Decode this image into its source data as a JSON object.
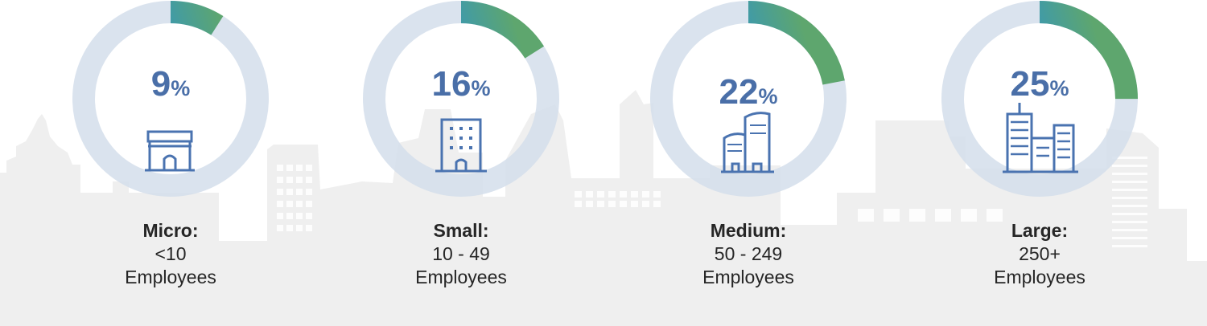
{
  "chart_data": {
    "type": "pie",
    "subtype": "donut",
    "unit_symbol": "%",
    "max": 100,
    "colors": {
      "track": "#d3deeb",
      "fill_start": "#3566a8",
      "fill_mid": "#2a92d2",
      "fill_end": "#5ea66e",
      "number": "#4a6fa8",
      "icon": "#4a73b0"
    },
    "items": [
      {
        "value": 9,
        "value_label": "9",
        "category": "Micro:",
        "range": "<10",
        "unit": "Employees",
        "icon": "shop-icon"
      },
      {
        "value": 16,
        "value_label": "16",
        "category": "Small:",
        "range": "10 - 49",
        "unit": "Employees",
        "icon": "office-building-icon"
      },
      {
        "value": 22,
        "value_label": "22",
        "category": "Medium:",
        "range": "50 - 249",
        "unit": "Employees",
        "icon": "twin-buildings-icon"
      },
      {
        "value": 25,
        "value_label": "25",
        "category": "Large:",
        "range": "250+",
        "unit": "Employees",
        "icon": "corporate-complex-icon"
      }
    ]
  }
}
